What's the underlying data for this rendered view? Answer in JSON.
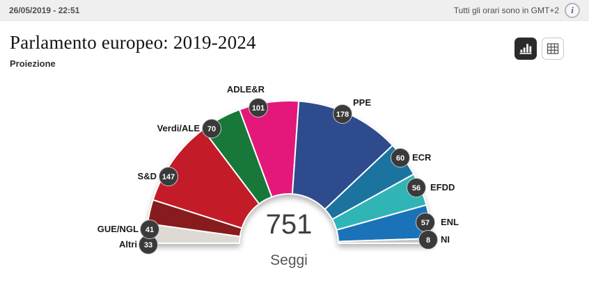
{
  "topbar": {
    "datetime": "26/05/2019 - 22:51",
    "timezone_note": "Tutti gli orari sono in GMT+2",
    "info_glyph": "i"
  },
  "header": {
    "title": "Parlamento europeo: 2019-2024",
    "subtitle": "Proiezione"
  },
  "toolbar": {
    "chart_view_icon": "bar-chart-icon",
    "table_view_icon": "table-grid-icon",
    "active_view": "chart"
  },
  "chart_data": {
    "type": "pie",
    "variant": "hemicycle-donut",
    "title": "Parlamento europeo: 2019-2024",
    "center_total": "751",
    "center_label": "Seggi",
    "total_seats": 751,
    "angle_span_degrees": 180,
    "legend_position": "around-arc",
    "categories": [
      "Altri",
      "GUE/NGL",
      "S&D",
      "Verdi/ALE",
      "ADLE&R",
      "PPE",
      "ECR",
      "EFDD",
      "ENL",
      "NI"
    ],
    "values": [
      33,
      41,
      147,
      70,
      101,
      178,
      60,
      56,
      57,
      8
    ],
    "colors": [
      "#DED9D3",
      "#871B1E",
      "#C31B28",
      "#17783A",
      "#E4187B",
      "#2E4B8E",
      "#1B73A0",
      "#31B4B6",
      "#1A73B9",
      "#C6C6C4"
    ],
    "badge_fill": "#3A3A3A",
    "badge_border": "#C8C8C8",
    "badge_text_color": "#FFFFFF"
  }
}
